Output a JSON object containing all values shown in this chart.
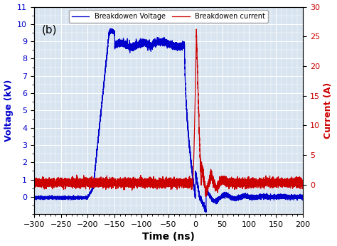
{
  "xlabel": "Time (ns)",
  "ylabel_left": "Voltage (kV)",
  "ylabel_right": "Current (A)",
  "annotation": "(b)",
  "legend_voltage": "Breakdowen Voltage",
  "legend_current": "Breakdowen current",
  "voltage_color": "#0000cc",
  "current_color": "#cc0000",
  "xlim": [
    -300,
    200
  ],
  "ylim_left": [
    -1,
    11
  ],
  "ylim_right": [
    -5,
    30
  ],
  "yticks_left": [
    0,
    1,
    2,
    3,
    4,
    5,
    6,
    7,
    8,
    9,
    10,
    11
  ],
  "yticks_right": [
    0,
    5,
    10,
    15,
    20,
    25,
    30
  ],
  "xticks": [
    -300,
    -250,
    -200,
    -150,
    -100,
    -50,
    0,
    50,
    100,
    150,
    200
  ],
  "background_color": "#d8e4f0",
  "grid_color": "#ffffff",
  "font_size": 8
}
